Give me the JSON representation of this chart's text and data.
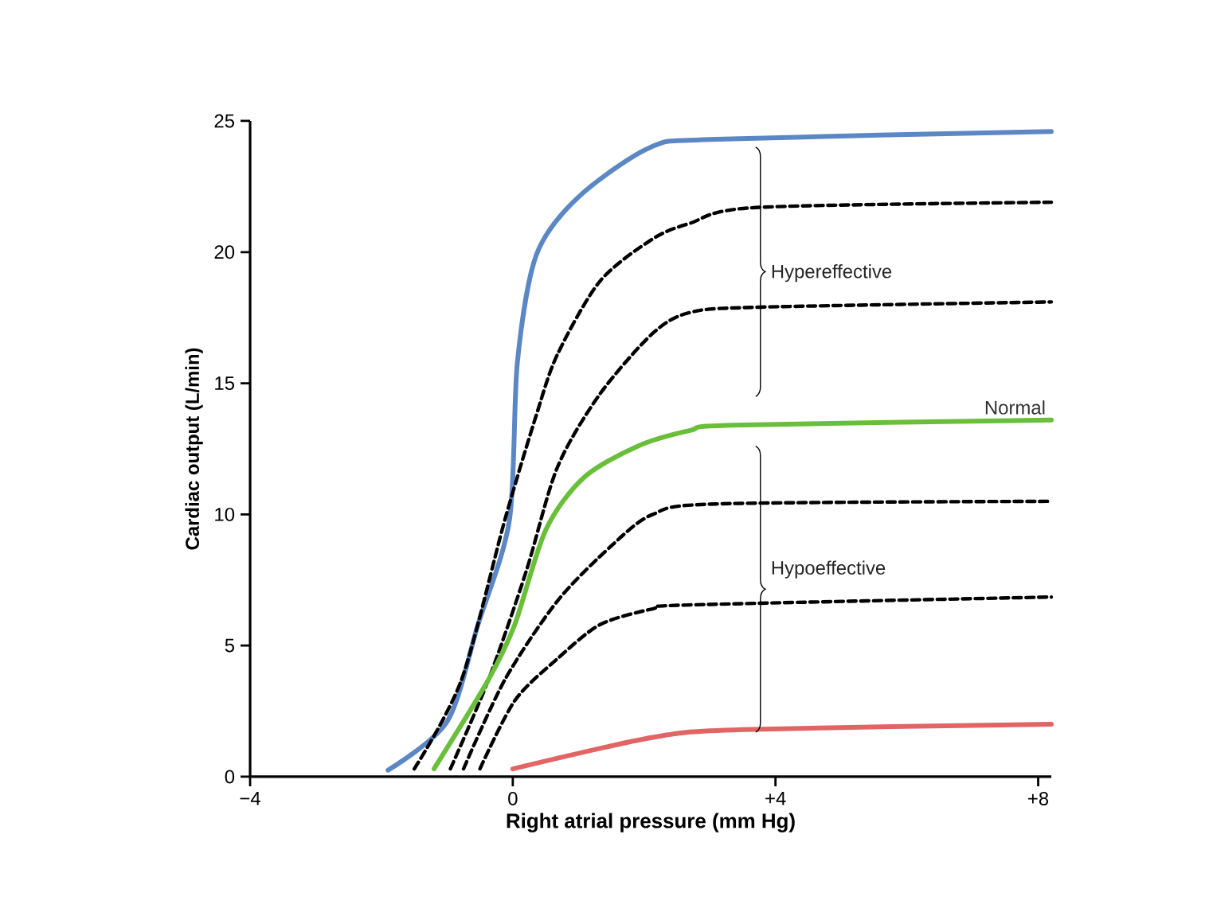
{
  "chart_data": {
    "type": "line",
    "xlabel": "Right atrial pressure (mm Hg)",
    "ylabel": "Cardiac output (L/min)",
    "xlim": [
      -4,
      8.2
    ],
    "ylim": [
      0,
      25
    ],
    "xticks": [
      {
        "value": -4,
        "label": "−4"
      },
      0,
      {
        "value": 4,
        "label": "+4"
      },
      {
        "value": 8,
        "label": "+8"
      }
    ],
    "yticks": [
      0,
      5,
      10,
      15,
      20,
      25
    ],
    "grid": false,
    "legend": false,
    "marker": "none",
    "series": [
      {
        "color": "#5b87c5",
        "line_style": "solid",
        "x": [
          -1.9,
          -1.0,
          -0.53,
          -0.05,
          0.07,
          0.36,
          1.0,
          2.1,
          3.1,
          8.2
        ],
        "values": [
          0.25,
          2.1,
          5.8,
          9.8,
          15.8,
          19.9,
          22.1,
          24.0,
          24.3,
          24.6
        ]
      },
      {
        "color": "#000000",
        "line_style": "dashed",
        "x": [
          -1.5,
          -0.78,
          -0.12,
          0.36,
          0.68,
          1.33,
          2.13,
          2.7,
          3.7,
          8.2
        ],
        "values": [
          0.3,
          3.7,
          9.8,
          13.8,
          16.1,
          18.9,
          20.5,
          21.1,
          21.7,
          21.9
        ]
      },
      {
        "color": "#000000",
        "line_style": "dashed",
        "x": [
          -0.95,
          -0.37,
          0.2,
          0.68,
          1.33,
          2.13,
          2.7,
          3.75,
          8.2
        ],
        "values": [
          0.3,
          3.7,
          7.8,
          11.8,
          14.6,
          16.9,
          17.7,
          17.9,
          18.1
        ]
      },
      {
        "name": "Normal",
        "color": "#6abf3a",
        "line_style": "solid",
        "x": [
          -1.2,
          -0.37,
          0.03,
          0.5,
          1.08,
          1.9,
          2.7,
          3.35,
          8.2
        ],
        "values": [
          0.3,
          3.7,
          5.8,
          9.4,
          11.4,
          12.6,
          13.2,
          13.4,
          13.6
        ]
      },
      {
        "color": "#000000",
        "line_style": "dashed",
        "x": [
          -0.75,
          -0.12,
          0.68,
          1.5,
          2.13,
          3.1,
          8.2
        ],
        "values": [
          0.3,
          3.7,
          6.7,
          8.8,
          10.0,
          10.4,
          10.5
        ]
      },
      {
        "color": "#000000",
        "line_style": "dashed",
        "x": [
          -0.5,
          0.03,
          0.68,
          1.33,
          2.13,
          2.7,
          8.2
        ],
        "values": [
          0.3,
          2.9,
          4.5,
          5.8,
          6.4,
          6.55,
          6.85
        ]
      },
      {
        "color": "#e26464",
        "line_style": "solid",
        "x": [
          0,
          2.13,
          3.5,
          8.2
        ],
        "values": [
          0.3,
          1.5,
          1.8,
          2.0
        ]
      }
    ],
    "annotations": [
      "Hypereffective",
      "Hypoeffective"
    ]
  }
}
